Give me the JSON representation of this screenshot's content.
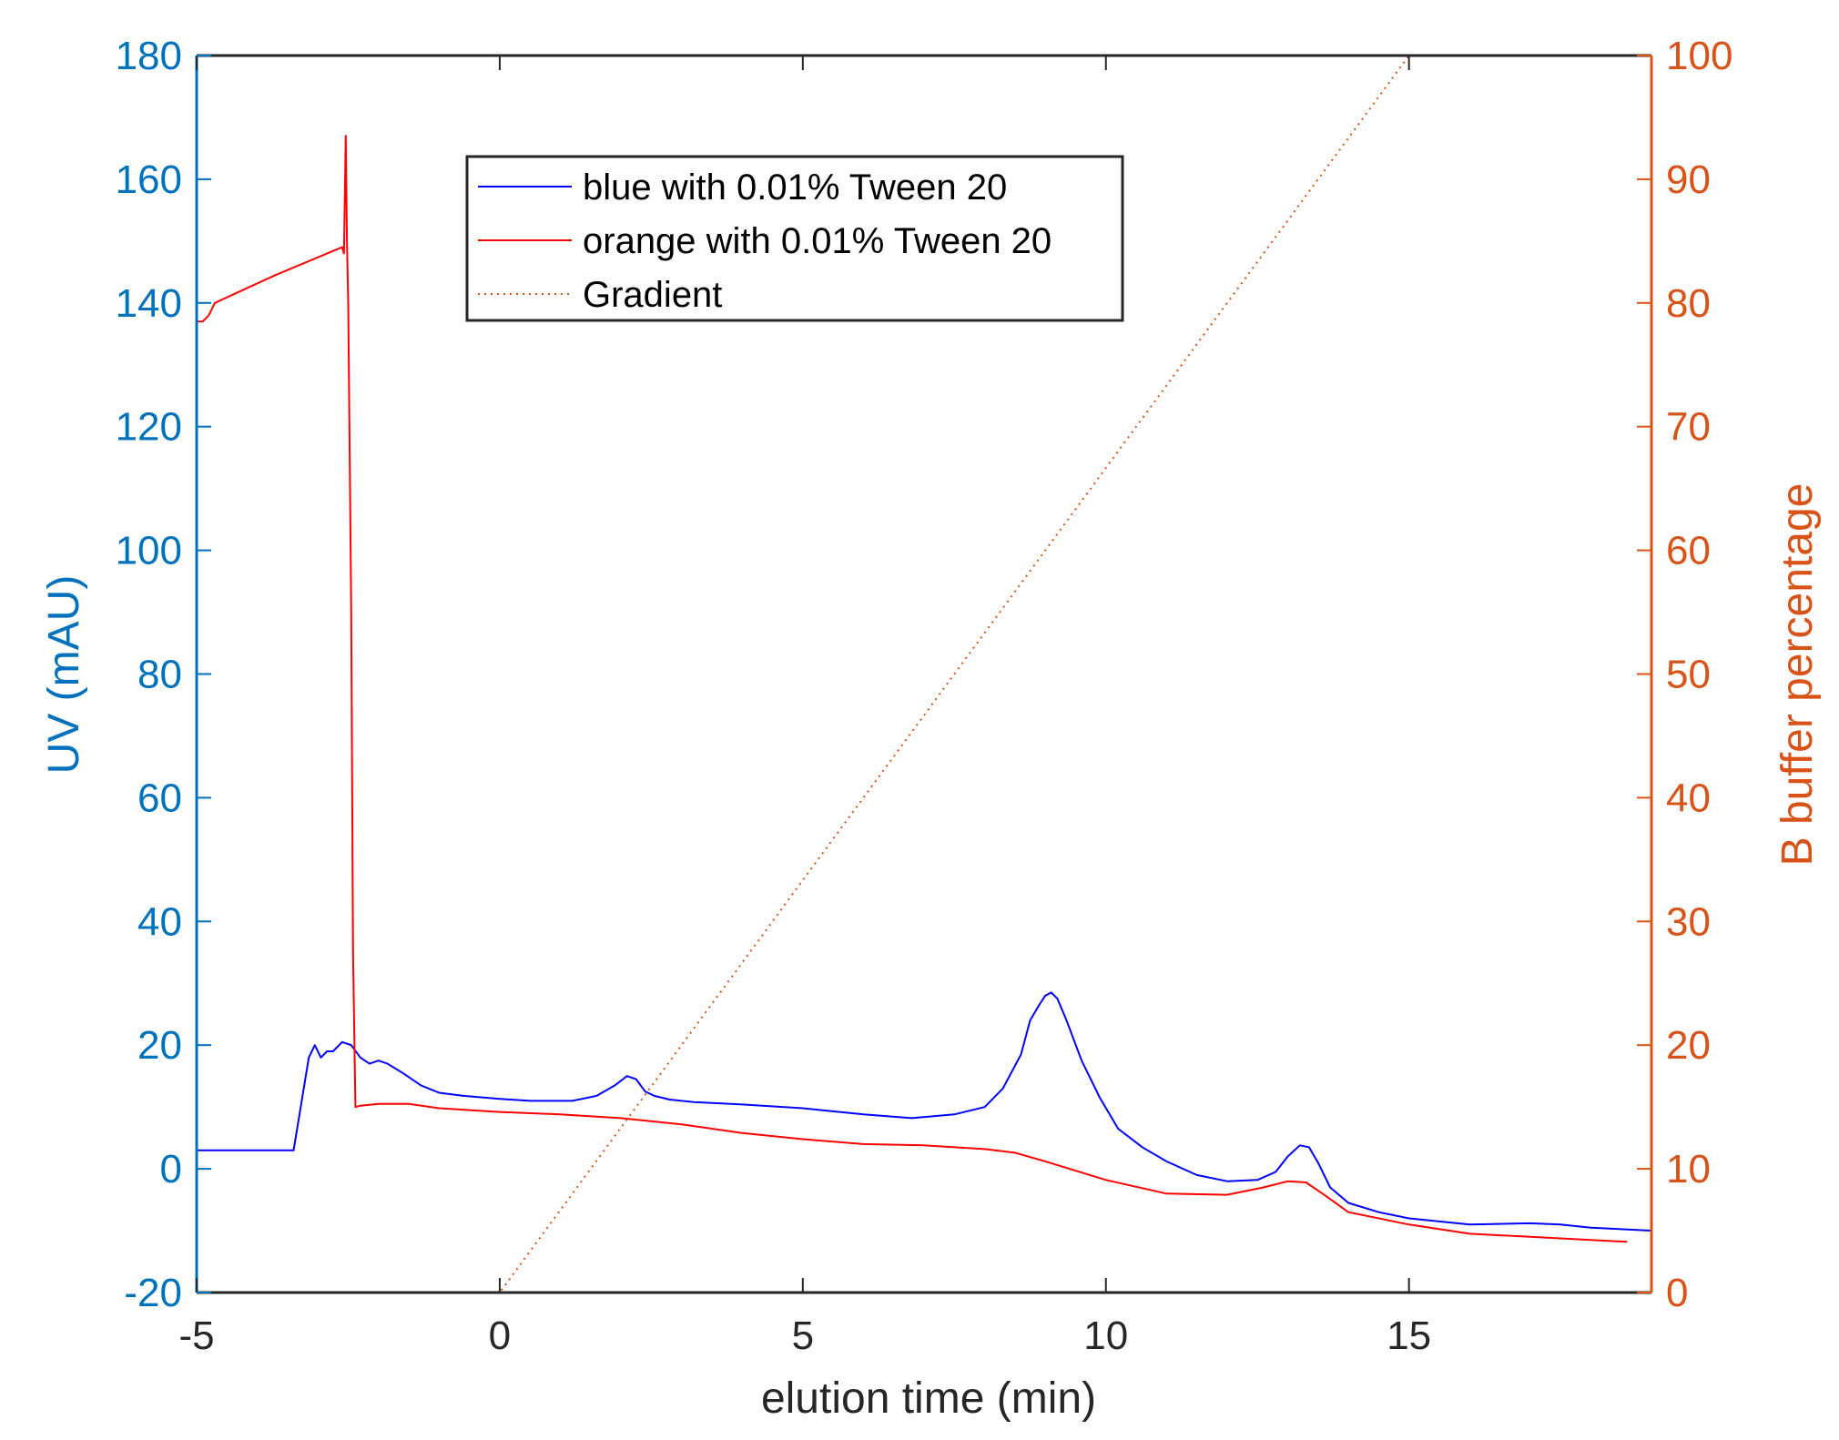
{
  "chart_data": {
    "type": "line",
    "xlabel": "elution time (min)",
    "ylabel_left": "UV (mAU)",
    "ylabel_right": "B buffer percentage",
    "xlim": [
      -5,
      19
    ],
    "ylim_left": [
      -20,
      180
    ],
    "ylim_right": [
      0,
      100
    ],
    "x_ticks": [
      -5,
      0,
      5,
      10,
      15
    ],
    "y_ticks_left": [
      -20,
      0,
      20,
      40,
      60,
      80,
      100,
      120,
      140,
      160,
      180
    ],
    "y_ticks_right": [
      0,
      10,
      20,
      30,
      40,
      50,
      60,
      70,
      80,
      90,
      100
    ],
    "grid": false,
    "legend_position": "top-center",
    "colors": {
      "left_axis": "#0072BD",
      "right_axis": "#D95319",
      "frame": "#262626"
    },
    "series": [
      {
        "name": "blue with 0.01% Tween 20",
        "axis": "left",
        "color": "#0000FF",
        "style": "solid",
        "x": [
          -5,
          -4,
          -3.4,
          -3.3,
          -3.15,
          -3.05,
          -2.95,
          -2.85,
          -2.75,
          -2.6,
          -2.45,
          -2.3,
          -2.15,
          -2.0,
          -1.85,
          -1.6,
          -1.3,
          -1.0,
          -0.6,
          0,
          0.5,
          1.2,
          1.6,
          1.9,
          2.1,
          2.25,
          2.4,
          2.55,
          2.8,
          3.2,
          4,
          5,
          6,
          6.8,
          7.5,
          8.0,
          8.3,
          8.6,
          8.75,
          8.9,
          9.0,
          9.1,
          9.2,
          9.35,
          9.6,
          9.9,
          10.2,
          10.6,
          11.0,
          11.5,
          12.0,
          12.5,
          12.8,
          13.0,
          13.2,
          13.35,
          13.5,
          13.7,
          14.0,
          14.5,
          15.0,
          16.0,
          17.0,
          17.5,
          18.0,
          19.0
        ],
        "y": [
          3,
          3,
          3,
          9,
          18,
          20,
          18,
          19,
          19,
          20.5,
          20,
          18,
          17,
          17.5,
          17,
          15.5,
          13.5,
          12.3,
          11.8,
          11.3,
          11,
          11,
          11.8,
          13.5,
          15,
          14.5,
          12.5,
          11.8,
          11.2,
          10.8,
          10.4,
          9.8,
          8.8,
          8.2,
          8.8,
          10,
          13,
          18.5,
          24,
          26.5,
          28,
          28.5,
          27.5,
          24,
          17.5,
          11.5,
          6.5,
          3.5,
          1.2,
          -1,
          -2,
          -1.8,
          -0.5,
          2,
          3.8,
          3.5,
          1,
          -3,
          -5.5,
          -7,
          -8,
          -9,
          -8.8,
          -9,
          -9.5,
          -10
        ]
      },
      {
        "name": "orange with 0.01% Tween 20",
        "axis": "left",
        "color": "#FF0000",
        "style": "solid",
        "x": [
          -5,
          -4.9,
          -4.8,
          -4.7,
          -3.7,
          -2.6,
          -2.57,
          -2.54,
          -2.52,
          -2.5,
          -2.45,
          -2.42,
          -2.38,
          -2.3,
          -2.0,
          -1.5,
          -1.0,
          0,
          1,
          2,
          3,
          4,
          5,
          6,
          7,
          8,
          8.5,
          9,
          10,
          11,
          12,
          12.6,
          13.0,
          13.3,
          13.6,
          14.0,
          15.0,
          16.0,
          17.0,
          18.0,
          18.6
        ],
        "y": [
          137,
          137,
          138,
          140,
          144.5,
          149,
          148,
          167,
          150,
          140,
          90,
          35,
          10,
          10.2,
          10.5,
          10.5,
          9.8,
          9.2,
          8.8,
          8.2,
          7.2,
          5.8,
          4.8,
          4.0,
          3.8,
          3.2,
          2.6,
          1.2,
          -1.8,
          -4,
          -4.2,
          -3,
          -2,
          -2.2,
          -4.2,
          -7,
          -9,
          -10.5,
          -11,
          -11.5,
          -11.8
        ]
      },
      {
        "name": "Gradient",
        "axis": "right",
        "color": "#D95319",
        "style": "dotted",
        "x": [
          -5,
          0,
          15,
          19
        ],
        "y": [
          0,
          0,
          100,
          100
        ]
      }
    ]
  }
}
